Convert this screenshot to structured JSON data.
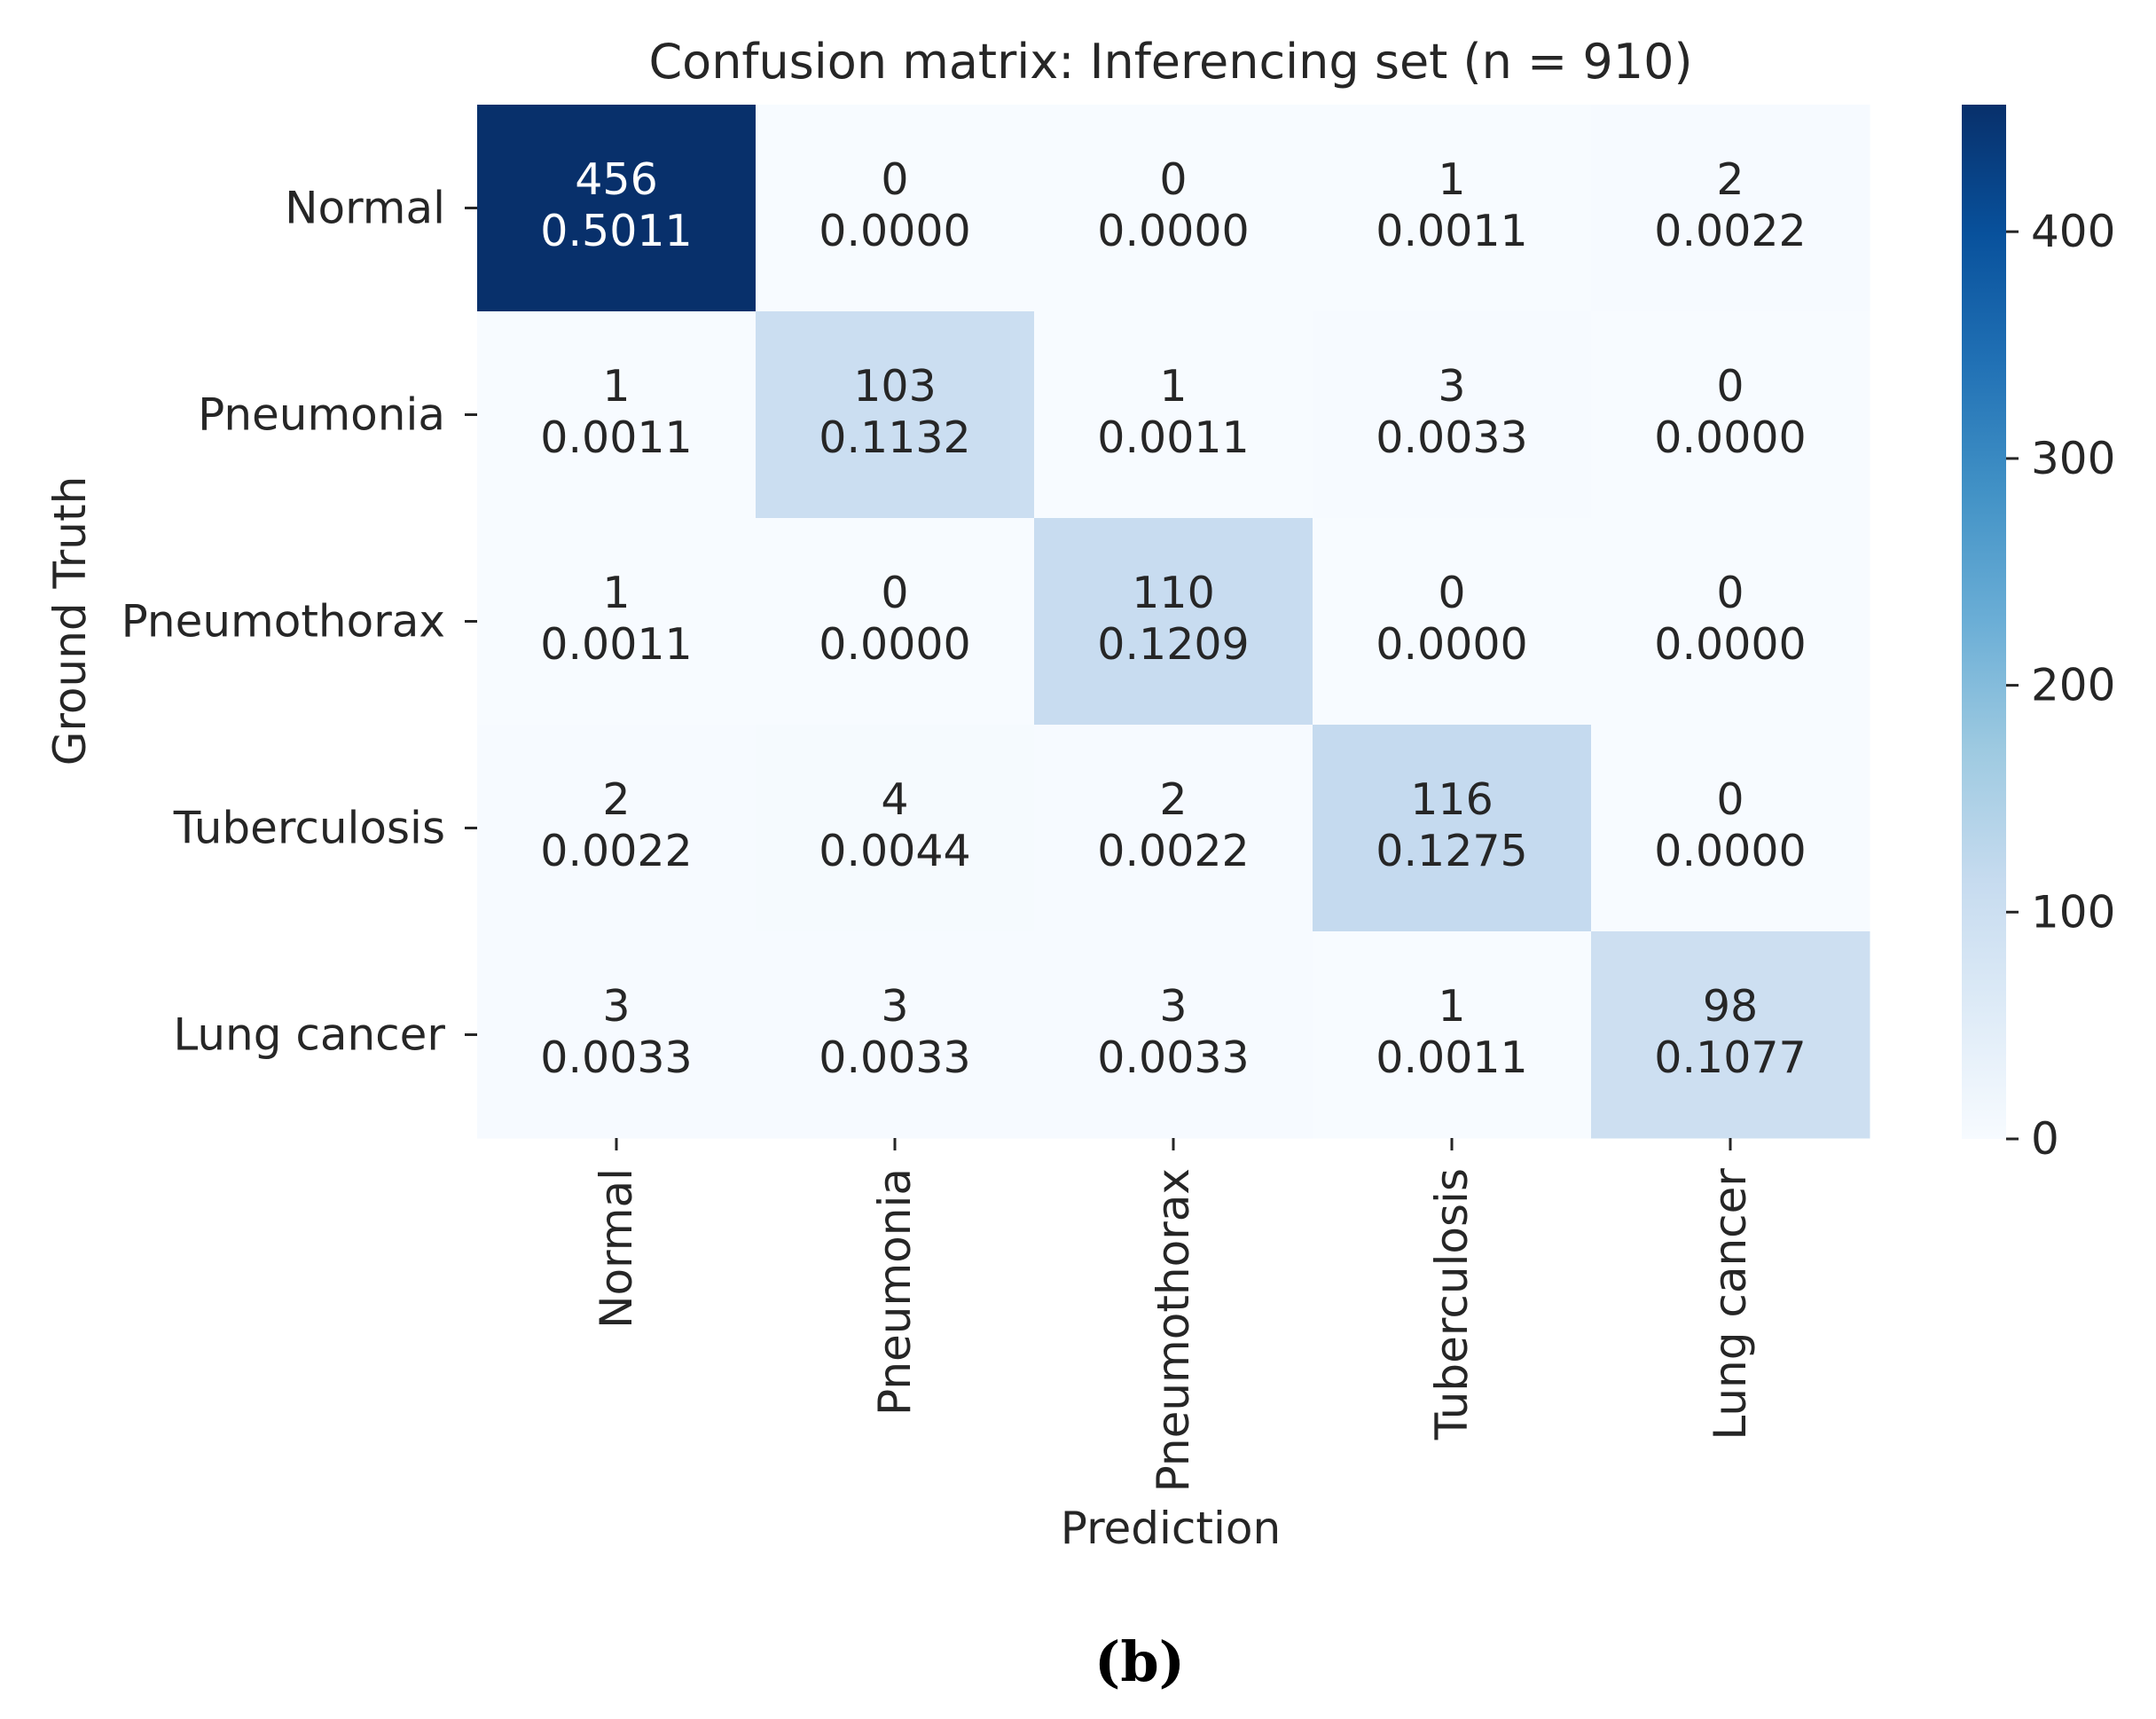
{
  "chart_data": {
    "type": "heatmap",
    "title": "Confusion matrix: Inferencing set (n = 910)",
    "xlabel": "Prediction",
    "ylabel": "Ground Truth",
    "row_labels": [
      "Normal",
      "Pneumonia",
      "Pneumothorax",
      "Tuberculosis",
      "Lung cancer"
    ],
    "col_labels": [
      "Normal",
      "Pneumonia",
      "Pneumothorax",
      "Tuberculosis",
      "Lung cancer"
    ],
    "counts": [
      [
        456,
        0,
        0,
        1,
        2
      ],
      [
        1,
        103,
        1,
        3,
        0
      ],
      [
        1,
        0,
        110,
        0,
        0
      ],
      [
        2,
        4,
        2,
        116,
        0
      ],
      [
        3,
        3,
        3,
        1,
        98
      ]
    ],
    "fractions": [
      [
        "0.5011",
        "0.0000",
        "0.0000",
        "0.0011",
        "0.0022"
      ],
      [
        "0.0011",
        "0.1132",
        "0.0011",
        "0.0033",
        "0.0000"
      ],
      [
        "0.0011",
        "0.0000",
        "0.1209",
        "0.0000",
        "0.0000"
      ],
      [
        "0.0022",
        "0.0044",
        "0.0022",
        "0.1275",
        "0.0000"
      ],
      [
        "0.0033",
        "0.0033",
        "0.0033",
        "0.0011",
        "0.1077"
      ]
    ],
    "colorbar": {
      "min": 0,
      "max": 456,
      "ticks": [
        0,
        100,
        200,
        300,
        400
      ],
      "colormap": "Blues",
      "colors": [
        "#f7fbff",
        "#deebf7",
        "#c6dbef",
        "#9ecae1",
        "#6baed6",
        "#4292c6",
        "#2171b5",
        "#08519c",
        "#08306b"
      ]
    }
  },
  "caption": "(b)"
}
